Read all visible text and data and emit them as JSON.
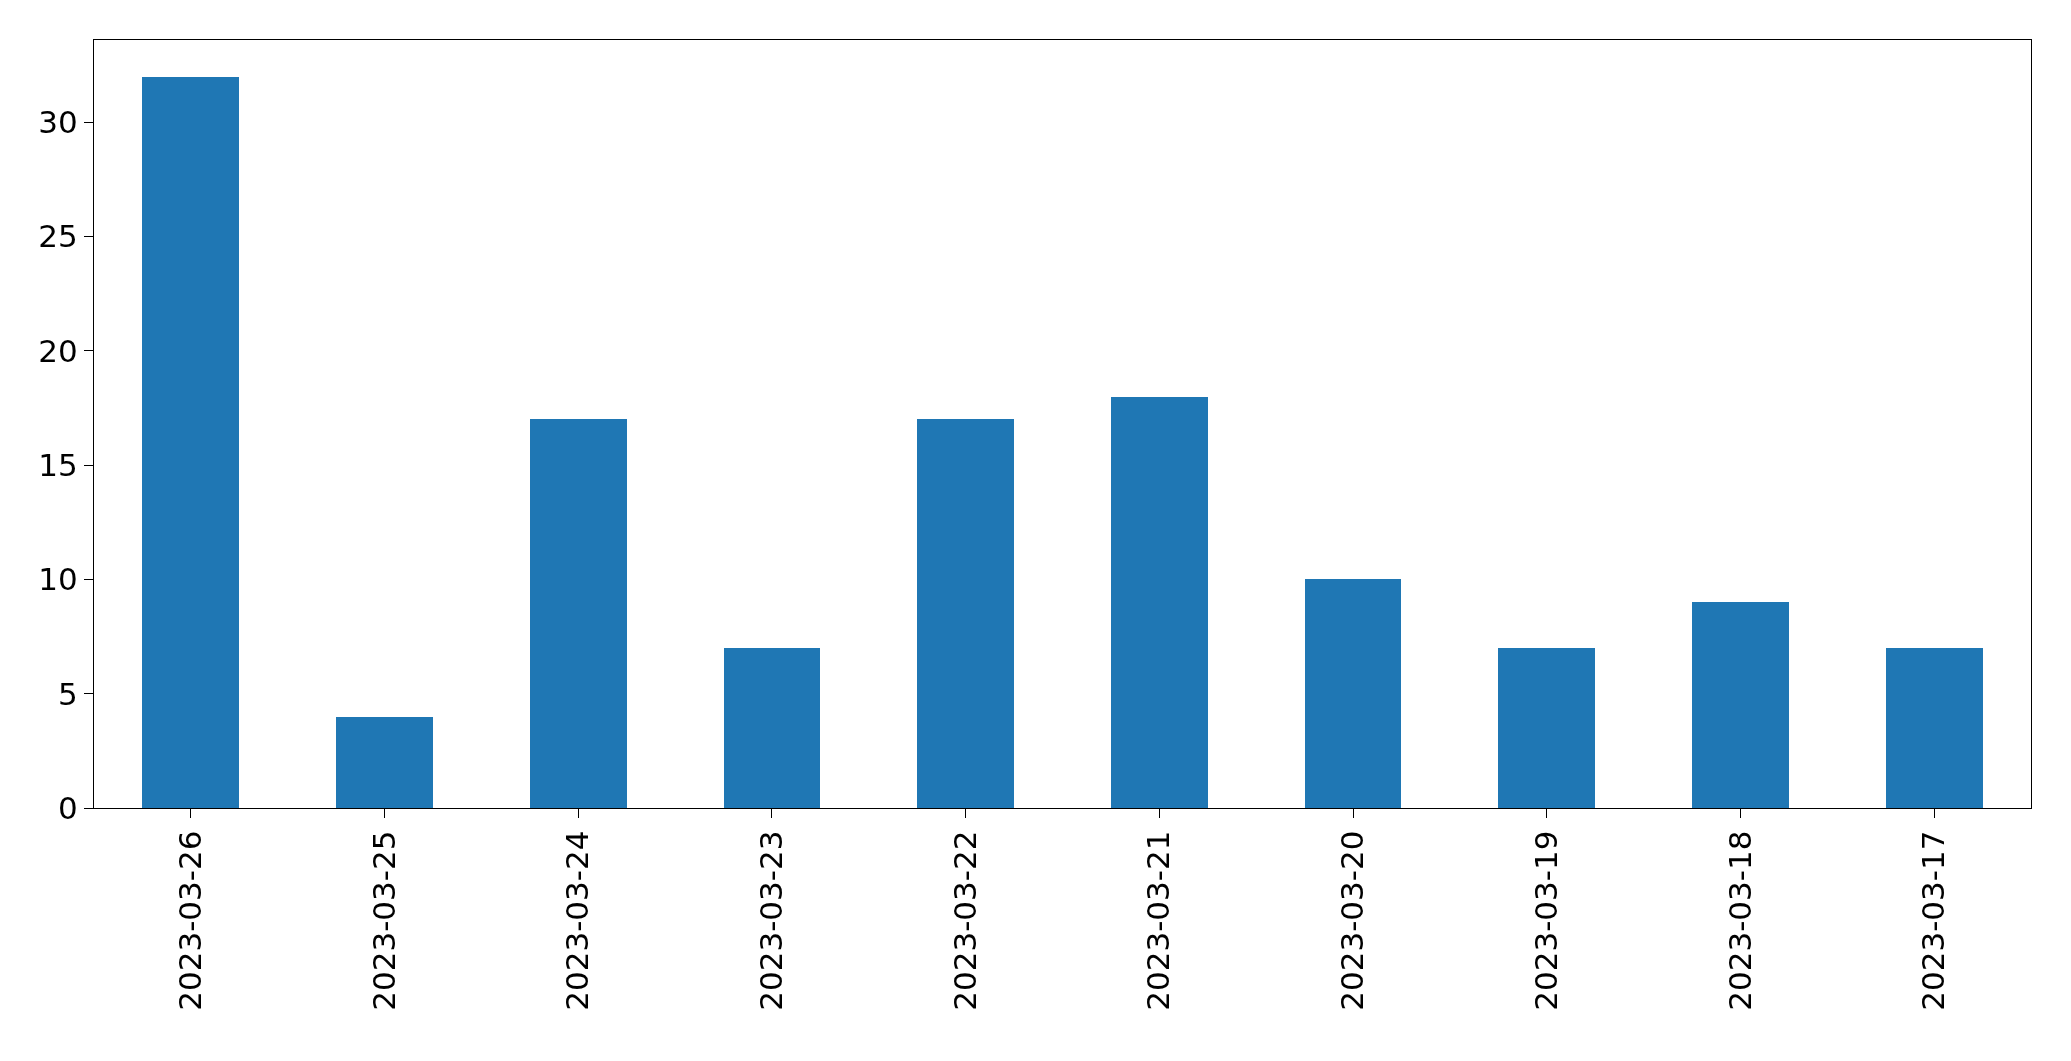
{
  "chart_data": {
    "type": "bar",
    "categories": [
      "2023-03-26",
      "2023-03-25",
      "2023-03-24",
      "2023-03-23",
      "2023-03-22",
      "2023-03-21",
      "2023-03-20",
      "2023-03-19",
      "2023-03-18",
      "2023-03-17"
    ],
    "values": [
      32,
      4,
      17,
      7,
      17,
      18,
      10,
      7,
      9,
      7
    ],
    "color": "#1f77b4",
    "ylim": [
      0,
      33.6
    ],
    "yticks": [
      0,
      5,
      10,
      15,
      20,
      25,
      30
    ]
  }
}
